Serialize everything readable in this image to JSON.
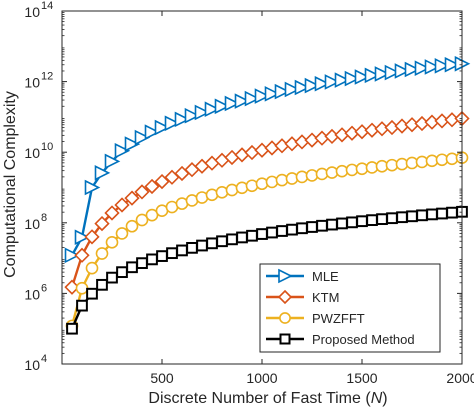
{
  "chart_data": {
    "type": "line",
    "title": "",
    "xlabel_main": "Discrete Number of Fast Time (",
    "xlabel_var": "N",
    "xlabel_end": ")",
    "ylabel": "Computational Complexity",
    "x_scale": "linear",
    "y_scale": "log",
    "xlim": [
      0,
      2000
    ],
    "ylim": [
      10000,
      100000000000000
    ],
    "x_ticks": [
      500,
      1000,
      1500,
      2000
    ],
    "x_tick_labels": [
      "500",
      "1000",
      "1500",
      "2000"
    ],
    "y_ticks": [
      10000,
      1000000,
      100000000,
      10000000000,
      1000000000000,
      100000000000000
    ],
    "y_tick_bases": [
      "10",
      "10",
      "10",
      "10",
      "10",
      "10"
    ],
    "y_tick_exponents": [
      "4",
      "6",
      "8",
      "10",
      "12",
      "14"
    ],
    "grid": false,
    "legend_position": "bottom-right",
    "x": [
      50,
      100,
      150,
      200,
      250,
      300,
      350,
      400,
      450,
      500,
      550,
      600,
      650,
      700,
      750,
      800,
      850,
      900,
      950,
      1000,
      1050,
      1100,
      1150,
      1200,
      1250,
      1300,
      1350,
      1400,
      1450,
      1500,
      1550,
      1600,
      1650,
      1700,
      1750,
      1800,
      1850,
      1900,
      1950,
      2000
    ],
    "series": [
      {
        "name": "MLE",
        "color": "#0072BD",
        "marker": "triangle-right",
        "values": [
          12000000.0,
          39000000.0,
          1000000000.0,
          2600000000.0,
          5500000000.0,
          11000000000.0,
          17000000000.0,
          26000000000.0,
          37000000000.0,
          50000000000.0,
          66000000000.0,
          85000000000.0,
          108000000000.0,
          134000000000.0,
          165000000000.0,
          200000000000.0,
          240000000000.0,
          280000000000.0,
          330000000000.0,
          390000000000.0,
          450000000000.0,
          520000000000.0,
          600000000000.0,
          680000000000.0,
          770000000000.0,
          870000000000.0,
          980000000000.0,
          1100000000000.0,
          1220000000000.0,
          1350000000000.0,
          1500000000000.0,
          1650000000000.0,
          1800000000000.0,
          2000000000000.0,
          2200000000000.0,
          2400000000000.0,
          2600000000000.0,
          2800000000000.0,
          3000000000000.0,
          3200000000000.0
        ]
      },
      {
        "name": "KTM",
        "color": "#D95319",
        "marker": "diamond",
        "values": [
          1500000.0,
          12000000.0,
          40000000.0,
          95000000.0,
          190000000.0,
          320000000.0,
          500000000.0,
          750000000.0,
          1070000000.0,
          1470000000.0,
          1950000000.0,
          2500000000.0,
          3200000000.0,
          4000000000.0,
          4900000000.0,
          5900000000.0,
          7100000000.0,
          8400000000.0,
          9800000000.0,
          11400000000.0,
          13200000000.0,
          15200000000.0,
          17300000000.0,
          19600000000.0,
          22000000000.0,
          25000000000.0,
          28000000000.0,
          31000000000.0,
          34500000000.0,
          38000000000.0,
          42000000000.0,
          46000000000.0,
          50000000000.0,
          55000000000.0,
          60000000000.0,
          65000000000.0,
          71000000000.0,
          77000000000.0,
          83000000000.0,
          90000000000.0
        ]
      },
      {
        "name": "PWZFFT",
        "color": "#EDB120",
        "marker": "circle",
        "values": [
          120000.0,
          1400000.0,
          5200000.0,
          13500000.0,
          28000000.0,
          50000000.0,
          80000000.0,
          120000000.0,
          165000000.0,
          220000000.0,
          280000000.0,
          350000000.0,
          430000000.0,
          520000000.0,
          620000000.0,
          730000000.0,
          850000000.0,
          980000000.0,
          1120000000.0,
          1280000000.0,
          1440000000.0,
          1620000000.0,
          1800000000.0,
          2000000000.0,
          2200000000.0,
          2420000000.0,
          2650000000.0,
          2900000000.0,
          3150000000.0,
          3400000000.0,
          3700000000.0,
          4000000000.0,
          4300000000.0,
          4600000000.0,
          4950000000.0,
          5300000000.0,
          5700000000.0,
          6100000000.0,
          6500000000.0,
          7000000000.0
        ]
      },
      {
        "name": "Proposed Method",
        "color": "#000000",
        "marker": "square",
        "values": [
          100000.0,
          450000.0,
          980000.0,
          1750000.0,
          2800000.0,
          4000000.0,
          5500000.0,
          7200000.0,
          9200000.0,
          11400000.0,
          13800000.0,
          16500000.0,
          19500000.0,
          22700000.0,
          26200000.0,
          30000000.0,
          34000000.0,
          38500000.0,
          43000000.0,
          48000000.0,
          53000000.0,
          58500000.0,
          64000000.0,
          70000000.0,
          76000000.0,
          82500000.0,
          89000000.0,
          96000000.0,
          103000000.0,
          111000000.0,
          119000000.0,
          127000000.0,
          135000000.0,
          144000000.0,
          153000000.0,
          163000000.0,
          173000000.0,
          183000000.0,
          194000000.0,
          205000000.0
        ]
      }
    ]
  }
}
